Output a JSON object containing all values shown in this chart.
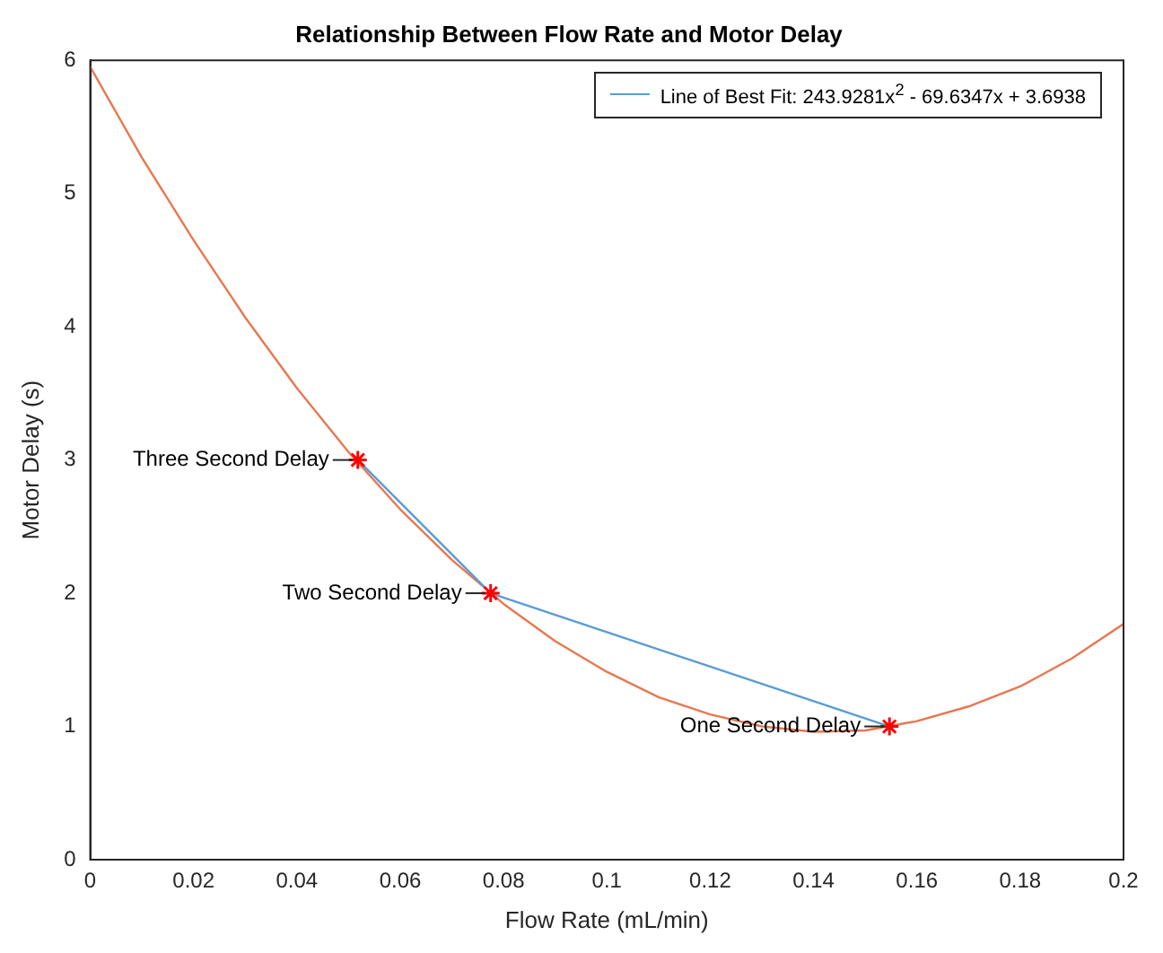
{
  "chart_data": {
    "type": "line",
    "title": "Relationship Between Flow Rate and Motor Delay",
    "xlabel": "Flow Rate (mL/min)",
    "ylabel": "Motor Delay (s)",
    "xlim": [
      0,
      0.2
    ],
    "xticks": [
      0,
      0.02,
      0.04,
      0.06,
      0.08,
      0.1,
      0.12,
      0.14,
      0.16,
      0.18,
      0.2
    ],
    "ylim": [
      0,
      6
    ],
    "yticks": [
      0,
      1,
      2,
      3,
      4,
      5,
      6
    ],
    "legend": "top right",
    "series": [
      {
        "name": "Line of Best Fit: 243.9281x$^{2}$ - 69.6347x + 3.6938",
        "color": "#5b9bd5",
        "marker": "none",
        "x": [
          0.0518,
          0.0775,
          0.1547
        ],
        "values": [
          3,
          2,
          1
        ]
      },
      {
        "color": "#e8774f",
        "marker": "none",
        "x": [
          0,
          0.01,
          0.02,
          0.03,
          0.04,
          0.05,
          0.06,
          0.07,
          0.08,
          0.09,
          0.1,
          0.11,
          0.12,
          0.13,
          0.14,
          0.15,
          0.16,
          0.17,
          0.18,
          0.19,
          0.2
        ],
        "values": [
          5.95,
          5.27,
          4.65,
          4.07,
          3.54,
          3.06,
          2.63,
          2.25,
          1.92,
          1.64,
          1.41,
          1.22,
          1.09,
          1.0,
          0.96,
          0.97,
          1.04,
          1.15,
          1.3,
          1.51,
          1.77
        ]
      },
      {
        "type": "scatter",
        "color": "#ff0000",
        "marker": "cross",
        "x": [
          0.0518,
          0.0775,
          0.1547
        ],
        "values": [
          3,
          2,
          1
        ]
      }
    ],
    "annotations": [
      {
        "text": "Three Second Delay",
        "x": 0.0518,
        "y": 3
      },
      {
        "text": "Two Second Delay",
        "x": 0.0775,
        "y": 2
      },
      {
        "text": "One Second Delay",
        "x": 0.1547,
        "y": 1
      }
    ]
  }
}
